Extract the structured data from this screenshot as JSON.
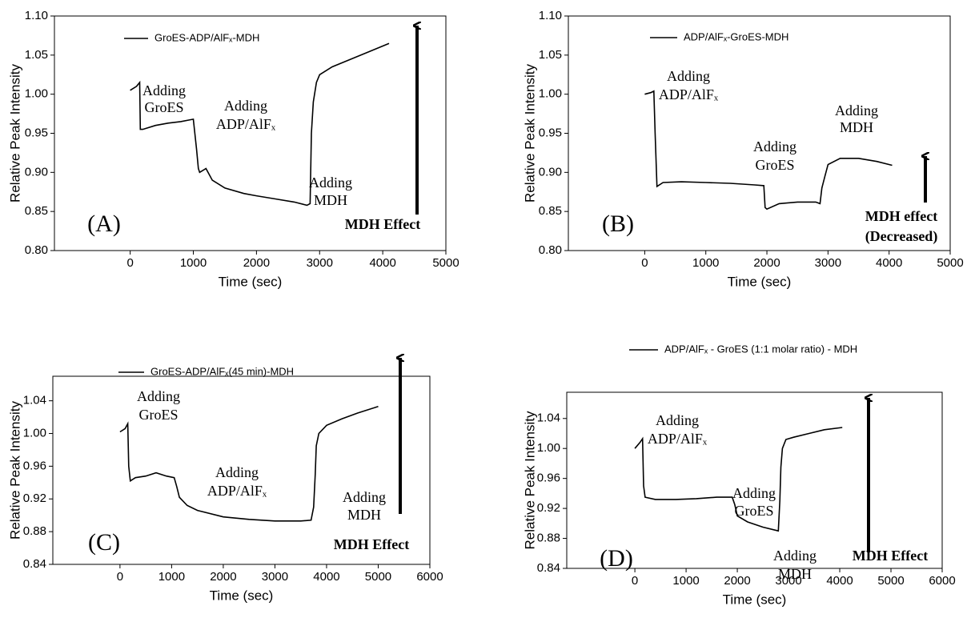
{
  "chart_data": [
    {
      "type": "line",
      "panel_label": "(A)",
      "x_label": "Time (sec)",
      "y_label": "Relative Peak Intensity",
      "xlim": [
        -1200,
        5000
      ],
      "ylim": [
        0.8,
        1.1
      ],
      "xticks": [
        0,
        1000,
        2000,
        3000,
        4000,
        5000
      ],
      "yticks": [
        {
          "value": 0.8,
          "label": "0.80"
        },
        0.85,
        {
          "value": 0.9,
          "label": "0.90"
        },
        0.95,
        {
          "value": 1.0,
          "label": "1.00"
        },
        1.05,
        {
          "value": 1.1,
          "label": "1.10"
        }
      ],
      "x": [
        0,
        100,
        150,
        160,
        200,
        400,
        600,
        800,
        1000,
        1050,
        1080,
        1100,
        1200,
        1300,
        1500,
        1800,
        2000,
        2300,
        2600,
        2800,
        2850,
        2870,
        2900,
        2950,
        3000,
        3200,
        3500,
        3800,
        4100
      ],
      "series": [
        {
          "name": "GroES-ADP/AlFₓ-MDH",
          "color": "#000000",
          "values": [
            1.005,
            1.01,
            1.015,
            0.955,
            0.955,
            0.96,
            0.963,
            0.965,
            0.968,
            0.93,
            0.905,
            0.9,
            0.905,
            0.89,
            0.88,
            0.873,
            0.87,
            0.866,
            0.862,
            0.858,
            0.86,
            0.95,
            0.99,
            1.015,
            1.025,
            1.035,
            1.045,
            1.055,
            1.065
          ]
        }
      ],
      "annotations": [
        "Adding",
        "GroES",
        "Adding",
        "ADP/AlFₓ",
        "Adding",
        "MDH",
        "MDH  Effect"
      ]
    },
    {
      "type": "line",
      "panel_label": "(B)",
      "x_label": "Time (sec)",
      "y_label": "Relative Peak Intensity",
      "xlim": [
        -1250,
        5000
      ],
      "ylim": [
        0.8,
        1.1
      ],
      "xticks": [
        0,
        1000,
        2000,
        3000,
        4000,
        5000
      ],
      "yticks": [
        {
          "value": 0.8,
          "label": "0.80"
        },
        0.85,
        {
          "value": 0.9,
          "label": "0.90"
        },
        0.95,
        {
          "value": 1.0,
          "label": "1.00"
        },
        1.05,
        {
          "value": 1.1,
          "label": "1.10"
        }
      ],
      "x": [
        0,
        100,
        150,
        170,
        200,
        300,
        600,
        1000,
        1400,
        1800,
        1950,
        1970,
        2000,
        2200,
        2500,
        2800,
        2870,
        2900,
        2950,
        3000,
        3200,
        3500,
        3800,
        4050
      ],
      "series": [
        {
          "name": "ADP/AlFₓ-GroES-MDH",
          "color": "#000000",
          "values": [
            1.0,
            1.002,
            1.004,
            0.95,
            0.882,
            0.887,
            0.888,
            0.887,
            0.886,
            0.884,
            0.883,
            0.855,
            0.853,
            0.86,
            0.862,
            0.862,
            0.86,
            0.88,
            0.895,
            0.91,
            0.918,
            0.918,
            0.914,
            0.909
          ]
        }
      ],
      "annotations": [
        "Adding",
        "ADP/AlFₓ",
        "Adding",
        "GroES",
        "Adding",
        "MDH",
        "MDH effect",
        "(Decreased)"
      ]
    },
    {
      "type": "line",
      "panel_label": "(C)",
      "x_label": "Time (sec)",
      "y_label": "Relative Peak Intensity",
      "xlim": [
        -1300,
        6000
      ],
      "ylim": [
        0.84,
        1.07
      ],
      "xticks": [
        0,
        1000,
        2000,
        3000,
        4000,
        5000,
        6000
      ],
      "yticks": [
        0.84,
        0.88,
        0.92,
        0.96,
        {
          "value": 1.0,
          "label": "1.00"
        },
        1.04
      ],
      "x": [
        0,
        100,
        150,
        170,
        200,
        300,
        500,
        700,
        900,
        1050,
        1100,
        1150,
        1300,
        1500,
        2000,
        2500,
        3000,
        3500,
        3700,
        3750,
        3780,
        3800,
        3850,
        4000,
        4300,
        4600,
        5000
      ],
      "series": [
        {
          "name": "GroES-ADP/AlFₓ(45 min)-MDH",
          "color": "#000000",
          "values": [
            1.002,
            1.006,
            1.012,
            0.96,
            0.942,
            0.946,
            0.948,
            0.952,
            0.948,
            0.946,
            0.935,
            0.922,
            0.912,
            0.906,
            0.898,
            0.895,
            0.893,
            0.893,
            0.894,
            0.91,
            0.95,
            0.985,
            1.0,
            1.01,
            1.018,
            1.025,
            1.033
          ]
        }
      ],
      "annotations": [
        "Adding",
        "GroES",
        "Adding",
        "ADP/AlFₓ",
        "Adding",
        "MDH",
        "MDH  Effect"
      ]
    },
    {
      "type": "line",
      "panel_label": "(D)",
      "x_label": "Time (sec)",
      "y_label": "Relative Peak Intensity",
      "xlim": [
        -1330,
        6000
      ],
      "ylim": [
        0.84,
        1.075
      ],
      "xticks": [
        0,
        1000,
        2000,
        3000,
        4000,
        5000,
        6000
      ],
      "yticks": [
        0.84,
        0.88,
        0.92,
        0.96,
        {
          "value": 1.0,
          "label": "1.00"
        },
        1.04
      ],
      "x": [
        0,
        100,
        150,
        170,
        200,
        400,
        800,
        1200,
        1600,
        1900,
        1950,
        2000,
        2200,
        2500,
        2800,
        2830,
        2850,
        2880,
        2950,
        3100,
        3400,
        3700,
        4050
      ],
      "series": [
        {
          "name": "ADP/AlFₓ - GroES (1:1 molar ratio) - MDH",
          "color": "#000000",
          "values": [
            1.0,
            1.008,
            1.013,
            0.95,
            0.935,
            0.932,
            0.932,
            0.933,
            0.935,
            0.935,
            0.925,
            0.91,
            0.902,
            0.895,
            0.89,
            0.93,
            0.975,
            1.0,
            1.012,
            1.015,
            1.02,
            1.025,
            1.028
          ]
        }
      ],
      "annotations": [
        "Adding",
        "ADP/AlFₓ",
        "Adding",
        "GroES",
        "Adding",
        "MDH",
        "MDH  Effect"
      ]
    }
  ]
}
